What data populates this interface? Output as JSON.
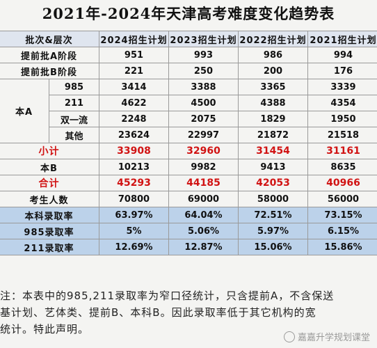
{
  "title": "2021年-2024年天津高考难度变化趋势表",
  "table": {
    "header": [
      "批次&层次",
      "2024招生计划",
      "2023招生计划",
      "2022招生计划",
      "2021招生计划"
    ],
    "rows": {
      "tiqian_a": {
        "label": "提前批A阶段",
        "values": [
          "951",
          "993",
          "986",
          "994"
        ]
      },
      "tiqian_b": {
        "label": "提前批B阶段",
        "values": [
          "221",
          "250",
          "200",
          "176"
        ]
      },
      "benA_group": "本A",
      "benA_985": {
        "label": "985",
        "values": [
          "3414",
          "3388",
          "3365",
          "3339"
        ]
      },
      "benA_211": {
        "label": "211",
        "values": [
          "4622",
          "4500",
          "4388",
          "4354"
        ]
      },
      "benA_syl": {
        "label": "双一流",
        "values": [
          "2248",
          "2075",
          "1829",
          "1950"
        ]
      },
      "benA_other": {
        "label": "其他",
        "values": [
          "23624",
          "22997",
          "21872",
          "21518"
        ]
      },
      "subtotal": {
        "label": "小计",
        "values": [
          "33908",
          "32960",
          "31454",
          "31161"
        ]
      },
      "benB": {
        "label": "本B",
        "values": [
          "10213",
          "9982",
          "9413",
          "8635"
        ]
      },
      "total": {
        "label": "合计",
        "values": [
          "45293",
          "44185",
          "42053",
          "40966"
        ]
      },
      "examinees": {
        "label": "考生人数",
        "values": [
          "70800",
          "69000",
          "58000",
          "56000"
        ]
      },
      "rate_benke": {
        "label": "本科录取率",
        "values": [
          "63.97%",
          "64.04%",
          "72.51%",
          "73.15%"
        ]
      },
      "rate_985": {
        "label": "985录取率",
        "values": [
          "5%",
          "5.06%",
          "5.97%",
          "6.15%"
        ]
      },
      "rate_211": {
        "label": "211录取率",
        "values": [
          "12.69%",
          "12.87%",
          "15.06%",
          "15.86%"
        ]
      }
    }
  },
  "note": {
    "line1": "注：本表中的985,211录取率为窄口径统计，只含提前A，不含保送",
    "line2": "基计划、艺体类、提前B、本科B。因此录取率低于其它机构的宽",
    "line3": "统计。特此声明。"
  },
  "watermark": "嘉嘉升学规划课堂"
}
